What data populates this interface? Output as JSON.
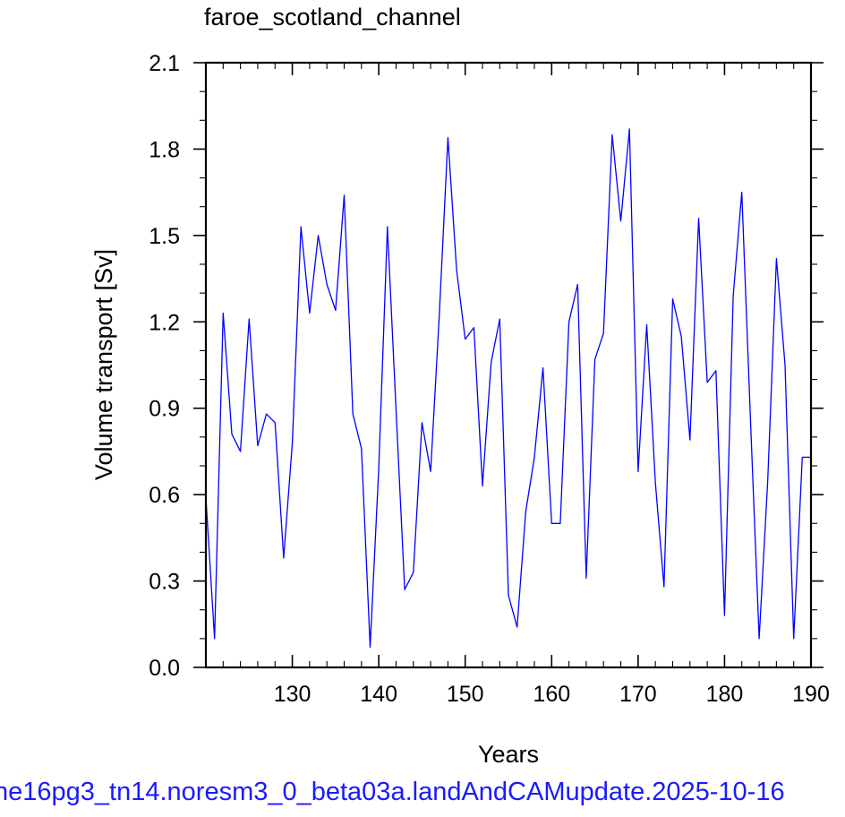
{
  "chart_data": {
    "type": "line",
    "title": "faroe_scotland_channel",
    "xlabel": "Years",
    "ylabel": "Volume transport [Sv]",
    "xlim": [
      120,
      190
    ],
    "ylim": [
      0.0,
      2.1
    ],
    "xticks": [
      "130",
      "140",
      "150",
      "160",
      "170",
      "180",
      "190"
    ],
    "yticks": [
      "0.0",
      "0.3",
      "0.6",
      "0.9",
      "1.2",
      "1.5",
      "1.8",
      "2.1"
    ],
    "grid": false,
    "series": [
      {
        "color": "#0000ff",
        "x": [
          120,
          121,
          122,
          123,
          124,
          125,
          126,
          127,
          128,
          129,
          130,
          131,
          132,
          133,
          134,
          135,
          136,
          137,
          138,
          139,
          140,
          141,
          142,
          143,
          144,
          145,
          146,
          147,
          148,
          149,
          150,
          151,
          152,
          153,
          154,
          155,
          156,
          157,
          158,
          159,
          160,
          161,
          162,
          163,
          164,
          165,
          166,
          167,
          168,
          169,
          170,
          171,
          172,
          173,
          174,
          175,
          176,
          177,
          178,
          179,
          180,
          181,
          182,
          183,
          184,
          185,
          186,
          187,
          188,
          189,
          190
        ],
        "y": [
          0.59,
          0.1,
          1.23,
          0.81,
          0.75,
          1.21,
          0.77,
          0.88,
          0.85,
          0.38,
          0.78,
          1.53,
          1.23,
          1.5,
          1.33,
          1.24,
          1.64,
          0.88,
          0.76,
          0.07,
          0.69,
          1.53,
          0.89,
          0.27,
          0.33,
          0.85,
          0.68,
          1.22,
          1.84,
          1.38,
          1.14,
          1.18,
          0.63,
          1.06,
          1.21,
          0.25,
          0.14,
          0.54,
          0.73,
          1.04,
          0.5,
          0.5,
          1.2,
          1.33,
          0.31,
          1.07,
          1.16,
          1.85,
          1.55,
          1.87,
          0.68,
          1.19,
          0.64,
          0.28,
          1.28,
          1.15,
          0.79,
          1.56,
          0.99,
          1.03,
          0.18,
          1.29,
          1.65,
          0.86,
          0.1,
          0.65,
          1.42,
          1.05,
          0.1,
          0.73,
          0.73
        ]
      }
    ]
  },
  "caption": "ne16pg3_tn14.noresm3_0_beta03a.landAndCAMupdate.2025-10-16"
}
